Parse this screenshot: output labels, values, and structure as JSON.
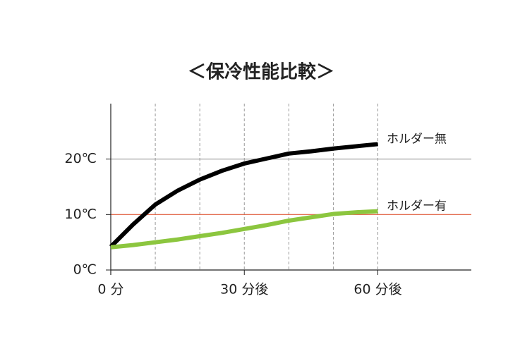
{
  "chart_data": {
    "type": "line",
    "title": "＜保冷性能比較＞",
    "x": [
      0,
      5,
      10,
      15,
      20,
      25,
      30,
      35,
      40,
      45,
      50,
      55,
      60
    ],
    "series": [
      {
        "name": "ホルダー無",
        "color": "#000000",
        "values": [
          4.2,
          8.2,
          11.8,
          14.3,
          16.3,
          17.9,
          19.2,
          20.1,
          21.0,
          21.4,
          21.9,
          22.3,
          22.7
        ]
      },
      {
        "name": "ホルダー有",
        "color": "#8cc63f",
        "values": [
          4.1,
          4.5,
          5.0,
          5.5,
          6.1,
          6.7,
          7.4,
          8.1,
          8.9,
          9.5,
          10.1,
          10.4,
          10.6
        ]
      }
    ],
    "xlim": [
      0,
      81
    ],
    "ylim": [
      0,
      30
    ],
    "xticks": [
      {
        "value": 0,
        "label": "0 分"
      },
      {
        "value": 30,
        "label": "30 分後"
      },
      {
        "value": 60,
        "label": "60 分後"
      }
    ],
    "x_gridlines": [
      10,
      20,
      30,
      40,
      50,
      60
    ],
    "yticks": [
      {
        "value": 0,
        "label": "0℃"
      },
      {
        "value": 10,
        "label": "10℃"
      },
      {
        "value": 20,
        "label": "20℃"
      }
    ],
    "y_gridline_colors": [
      "#999999",
      "#e05a3a",
      "#999999"
    ]
  }
}
